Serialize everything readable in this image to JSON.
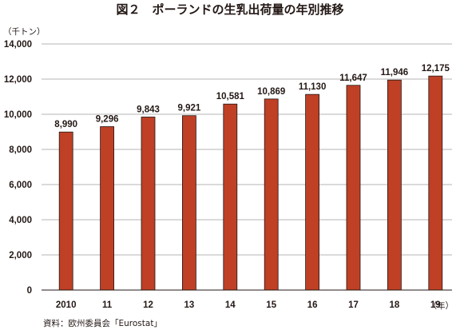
{
  "figure": {
    "title": "図２　ポーランドの生乳出荷量の年別推移",
    "unit_label": "（千トン）",
    "source": "資料：欧州委員会「Eurostat」"
  },
  "colors": {
    "bar_fill": "#BF4025",
    "gridline": "#B5B5B5",
    "text": "#231815"
  },
  "chart_data": {
    "type": "bar",
    "categories": [
      "2010",
      "11",
      "12",
      "13",
      "14",
      "15",
      "16",
      "17",
      "18",
      "19"
    ],
    "values": [
      8990,
      9296,
      9843,
      9921,
      10581,
      10869,
      11130,
      11647,
      11946,
      12175
    ],
    "data_labels": [
      "8,990",
      "9,296",
      "9,843",
      "9,921",
      "10,581",
      "10,869",
      "11,130",
      "11,647",
      "11,946",
      "12,175"
    ],
    "title": "図２　ポーランドの生乳出荷量の年別推移",
    "xlabel": "（年）",
    "ylabel": "（千トン）",
    "ylim": [
      0,
      14000
    ],
    "y_ticks": [
      0,
      2000,
      4000,
      6000,
      8000,
      10000,
      12000,
      14000
    ],
    "y_tick_labels": [
      "0",
      "2,000",
      "4,000",
      "6,000",
      "8,000",
      "10,000",
      "12,000",
      "14,000"
    ],
    "grid": true,
    "legend": "none"
  }
}
